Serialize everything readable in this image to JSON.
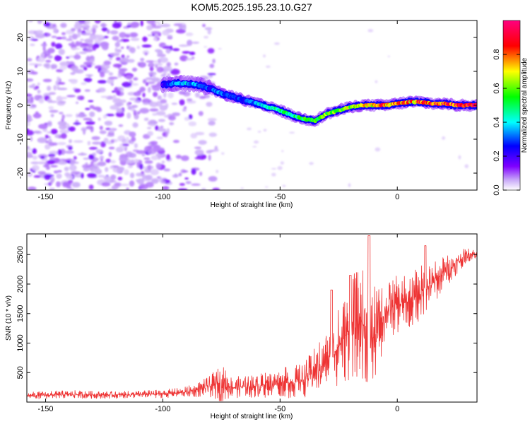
{
  "chart_data": [
    {
      "type": "heatmap",
      "title": "KOM5.2025.195.23.10.G27",
      "xlabel": "Height of straight line (km)",
      "ylabel": "Frequency (Hz)",
      "xlim": [
        -158,
        34
      ],
      "ylim": [
        -25,
        25
      ],
      "xticks": [
        -150,
        -100,
        -50,
        0
      ],
      "yticks": [
        -20,
        -10,
        0,
        10,
        20
      ],
      "colorbar": {
        "label": "Normalized spectral amplitude",
        "range": [
          0,
          1
        ],
        "ticks": [
          0.0,
          0.2,
          0.4,
          0.6,
          0.8
        ],
        "colormap": [
          "#ffffff",
          "#c8a8f8",
          "#7f00ff",
          "#0000ff",
          "#00ffff",
          "#00ff00",
          "#ffff00",
          "#ff0000",
          "#ff007f"
        ]
      },
      "ridge": {
        "x": [
          -100,
          -95,
          -90,
          -85,
          -80,
          -75,
          -70,
          -65,
          -60,
          -55,
          -50,
          -45,
          -40,
          -35,
          -30,
          -25,
          -20,
          -15,
          -10,
          -5,
          0,
          5,
          10,
          15,
          20,
          25,
          30,
          34
        ],
        "y": [
          6,
          6.5,
          6.5,
          6,
          5,
          3.5,
          2.5,
          1.5,
          0.5,
          -0.5,
          -1.5,
          -3,
          -4,
          -4.5,
          -2.5,
          -1.5,
          -0.5,
          0,
          0,
          0,
          0.5,
          1,
          1,
          0.5,
          0.5,
          0,
          0,
          0
        ],
        "amplitude": [
          0.2,
          0.35,
          0.4,
          0.35,
          0.3,
          0.35,
          0.3,
          0.3,
          0.4,
          0.45,
          0.5,
          0.5,
          0.55,
          0.6,
          0.65,
          0.6,
          0.7,
          0.75,
          0.8,
          0.85,
          0.8,
          0.85,
          0.85,
          0.9,
          0.9,
          0.95,
          0.95,
          1.0
        ]
      },
      "noise_region_x": [
        -158,
        -85
      ]
    },
    {
      "type": "line",
      "title": "",
      "xlabel": "Height of straight line (km)",
      "ylabel": "SNR (10 * v/v)",
      "xlim": [
        -158,
        34
      ],
      "ylim": [
        0,
        2850
      ],
      "xticks": [
        -150,
        -100,
        -50,
        0
      ],
      "yticks": [
        500,
        1000,
        1500,
        2000,
        2500
      ],
      "color": "#ee3333",
      "envelope": {
        "x": [
          -158,
          -140,
          -120,
          -100,
          -90,
          -80,
          -75,
          -70,
          -60,
          -50,
          -45,
          -40,
          -35,
          -30,
          -25,
          -20,
          -15,
          -12,
          -10,
          -5,
          0,
          5,
          10,
          15,
          20,
          25,
          30,
          34
        ],
        "baseline": [
          110,
          130,
          120,
          140,
          170,
          260,
          320,
          250,
          270,
          340,
          330,
          380,
          520,
          700,
          950,
          1250,
          1350,
          1150,
          1050,
          1550,
          1650,
          1700,
          1850,
          2000,
          2200,
          2350,
          2500,
          2520
        ],
        "amplitude": [
          60,
          70,
          60,
          70,
          90,
          180,
          330,
          180,
          200,
          250,
          280,
          300,
          420,
          550,
          700,
          900,
          950,
          1000,
          900,
          500,
          500,
          450,
          500,
          380,
          300,
          200,
          120,
          100
        ]
      }
    }
  ]
}
